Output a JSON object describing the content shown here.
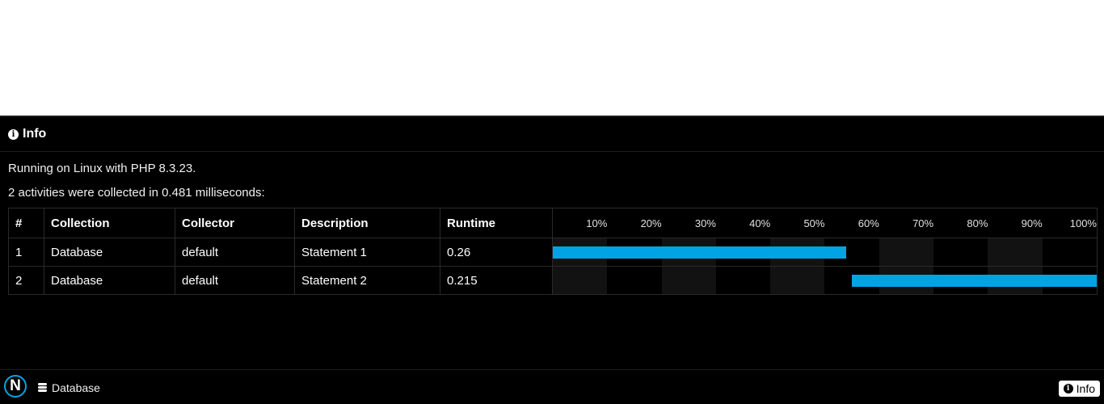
{
  "panel": {
    "title": "Info",
    "icon": "info-icon",
    "environment_text": "Running on Linux with PHP 8.3.23.",
    "summary_text": "2 activities were collected in 0.481 milliseconds:"
  },
  "table": {
    "headers": [
      "#",
      "Collection",
      "Collector",
      "Description",
      "Runtime"
    ],
    "timeline_ticks": [
      "10%",
      "20%",
      "30%",
      "40%",
      "50%",
      "60%",
      "70%",
      "80%",
      "90%",
      "100%"
    ],
    "rows": [
      {
        "num": "1",
        "collection": "Database",
        "collector": "default",
        "description": "Statement 1",
        "runtime": "0.26",
        "start": 0.0,
        "end": 0.54
      },
      {
        "num": "2",
        "collection": "Database",
        "collector": "default",
        "description": "Statement 2",
        "runtime": "0.215",
        "start": 0.55,
        "end": 1.0
      }
    ]
  },
  "footer": {
    "logo_letter": "N",
    "database_tab": "Database",
    "database_icon": "database-icon",
    "info_tab": "Info",
    "info_icon": "info-icon"
  },
  "colors": {
    "bar": "#00a4e4",
    "background": "#000000",
    "band": "#121212"
  }
}
